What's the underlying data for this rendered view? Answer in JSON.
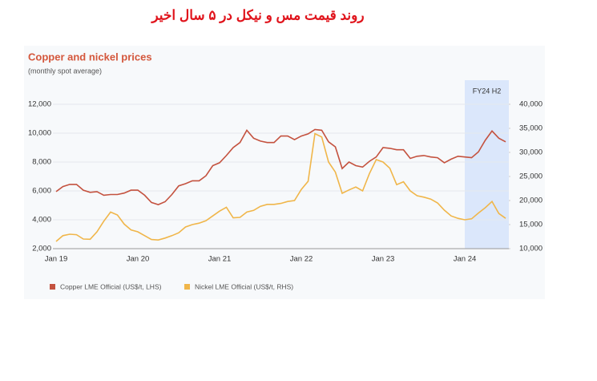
{
  "page_title": "روند قیمت مس و نیکل در ۵ سال اخیر",
  "chart_data": {
    "type": "line",
    "title": "Copper and nickel prices",
    "subtitle": "(monthly spot average)",
    "annotation": "FY24 H2",
    "categories": [
      "Jan 19",
      null,
      null,
      null,
      null,
      null,
      null,
      null,
      null,
      null,
      null,
      null,
      "Jan 20",
      null,
      null,
      null,
      null,
      null,
      null,
      null,
      null,
      null,
      null,
      null,
      "Jan 21",
      null,
      null,
      null,
      null,
      null,
      null,
      null,
      null,
      null,
      null,
      null,
      "Jan 22",
      null,
      null,
      null,
      null,
      null,
      null,
      null,
      null,
      null,
      null,
      null,
      "Jan 23",
      null,
      null,
      null,
      null,
      null,
      null,
      null,
      null,
      null,
      null,
      null,
      "Jan 24",
      null,
      null,
      null,
      null,
      null,
      null
    ],
    "series": [
      {
        "name": "Copper LME Official (US$/t, LHS)",
        "color": "#c4523f",
        "values": [
          5950,
          6300,
          6450,
          6450,
          6050,
          5900,
          5950,
          5700,
          5750,
          5750,
          5850,
          6050,
          6050,
          5700,
          5200,
          5050,
          5250,
          5750,
          6350,
          6500,
          6700,
          6700,
          7050,
          7750,
          7950,
          8450,
          9000,
          9350,
          10200,
          9650,
          9450,
          9350,
          9350,
          9800,
          9800,
          9550,
          9800,
          9950,
          10250,
          10200,
          9400,
          9050,
          7550,
          8000,
          7750,
          7650,
          8050,
          8350,
          9000,
          8950,
          8850,
          8850,
          8250,
          8400,
          8450,
          8350,
          8300,
          7950,
          8200,
          8400,
          8350,
          8300,
          8700,
          9500,
          10150,
          9650,
          9400
        ]
      },
      {
        "name": "Nickel LME Official (US$/t, RHS)",
        "color": "#f0b64a",
        "axis": "y2",
        "values": [
          11500,
          12700,
          13000,
          12900,
          12000,
          11950,
          13500,
          15700,
          17600,
          17000,
          15100,
          13900,
          13500,
          12700,
          11900,
          11800,
          12200,
          12700,
          13300,
          14500,
          15000,
          15300,
          15800,
          16800,
          17800,
          18600,
          16400,
          16500,
          17600,
          17950,
          18800,
          19200,
          19200,
          19400,
          19800,
          20000,
          22300,
          24000,
          33900,
          33200,
          28000,
          25900,
          21500,
          22200,
          22800,
          22000,
          25600,
          28500,
          28000,
          26700,
          23300,
          23900,
          22000,
          21000,
          20700,
          20300,
          19500,
          18000,
          16800,
          16300,
          16000,
          16200,
          17400,
          18500,
          19800,
          17300,
          16300
        ]
      }
    ],
    "ylim": [
      2000,
      12000
    ],
    "yticks": [
      {
        "value": 2000,
        "label": "2,000"
      },
      {
        "value": 4000,
        "label": "4,000"
      },
      {
        "value": 6000,
        "label": "6,000"
      },
      {
        "value": 8000,
        "label": "8,000"
      },
      {
        "value": 10000,
        "label": "10,000"
      },
      {
        "value": 12000,
        "label": "12,000"
      }
    ],
    "y2lim": [
      10000,
      40000
    ],
    "y2ticks": [
      {
        "value": 10000,
        "label": "10,000"
      },
      {
        "value": 15000,
        "label": "15,000"
      },
      {
        "value": 20000,
        "label": "20,000"
      },
      {
        "value": 25000,
        "label": "25,000"
      },
      {
        "value": 30000,
        "label": "30,000"
      },
      {
        "value": 35000,
        "label": "35,000"
      },
      {
        "value": 40000,
        "label": "40,000"
      }
    ],
    "grid": true
  }
}
